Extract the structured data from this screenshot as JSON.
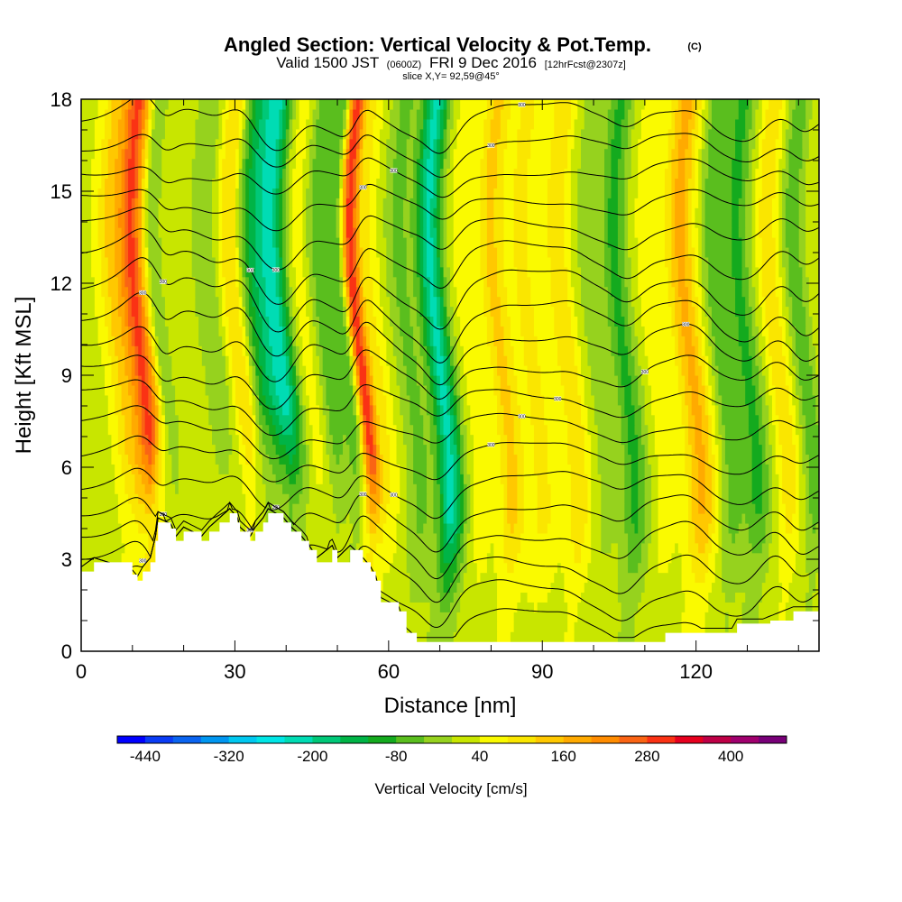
{
  "titles": {
    "main": "Angled Section: Vertical Velocity & Pot.Temp.",
    "main_mark": "(C)",
    "valid_prefix": "Valid 1500 JST",
    "valid_utc": "(0600Z)",
    "valid_date": "FRI 9 Dec 2016",
    "forecast": "[12hrFcst@2307z]",
    "slice": "slice X,Y= 92,59@45°"
  },
  "chart_data": {
    "type": "heatmap",
    "xlabel": "Distance [nm]",
    "ylabel": "Height [Kft MSL]",
    "xlim": [
      0,
      144
    ],
    "ylim": [
      0,
      18
    ],
    "x_ticks": [
      0,
      30,
      60,
      90,
      120
    ],
    "y_ticks": [
      0,
      3,
      6,
      9,
      12,
      15,
      18
    ],
    "colorbar": {
      "label": "Vertical Velocity [cm/s]",
      "tick_labels": [
        "-440",
        "-320",
        "-200",
        "-80",
        "40",
        "160",
        "280",
        "400"
      ],
      "min": -480,
      "max": 480,
      "step": 40,
      "colors": [
        "#0000ff",
        "#0a3cf5",
        "#0a64f0",
        "#0096f0",
        "#00c8f0",
        "#00e6e6",
        "#00dcb4",
        "#00c878",
        "#00b446",
        "#14aa1e",
        "#5abe1e",
        "#96d21e",
        "#c8e600",
        "#fafa00",
        "#fae600",
        "#ffc800",
        "#ffaa00",
        "#ff8c00",
        "#fa6414",
        "#fa3214",
        "#e6001e",
        "#be0046",
        "#a0006e",
        "#780078"
      ]
    },
    "velocity_bands": [
      {
        "x": 8,
        "w": 3,
        "v": 110
      },
      {
        "x": 12,
        "w": 2.4,
        "v": 250
      },
      {
        "x": 16,
        "w": 1.5,
        "v": -70
      },
      {
        "x": 21,
        "w": 2.5,
        "v": 20
      },
      {
        "x": 26,
        "w": 2.5,
        "v": -60
      },
      {
        "x": 31,
        "w": 2.2,
        "v": 110
      },
      {
        "x": 35,
        "w": 2.6,
        "v": -110
      },
      {
        "x": 39,
        "w": 3,
        "v": -230
      },
      {
        "x": 44,
        "w": 2.5,
        "v": 50
      },
      {
        "x": 48,
        "w": 2.2,
        "v": -80
      },
      {
        "x": 52,
        "w": 1.7,
        "v": -120
      },
      {
        "x": 54.5,
        "w": 1.8,
        "v": 290
      },
      {
        "x": 58,
        "w": 2,
        "v": 60
      },
      {
        "x": 64,
        "w": 2.5,
        "v": -70
      },
      {
        "x": 70,
        "w": 2.5,
        "v": -230
      },
      {
        "x": 76,
        "w": 2.2,
        "v": 40
      },
      {
        "x": 82,
        "w": 2.5,
        "v": 110
      },
      {
        "x": 88,
        "w": 3,
        "v": 70
      },
      {
        "x": 95,
        "w": 2.5,
        "v": 90
      },
      {
        "x": 100,
        "w": 2.5,
        "v": -30
      },
      {
        "x": 106,
        "w": 2.5,
        "v": -110
      },
      {
        "x": 112,
        "w": 2.2,
        "v": 40
      },
      {
        "x": 119,
        "w": 3,
        "v": 150
      },
      {
        "x": 125,
        "w": 2.5,
        "v": -80
      },
      {
        "x": 130,
        "w": 2.5,
        "v": -110
      },
      {
        "x": 136,
        "w": 2.2,
        "v": 90
      },
      {
        "x": 141,
        "w": 2,
        "v": -90
      }
    ],
    "terrain_kft": [
      [
        0,
        2.6
      ],
      [
        2.5,
        2.9
      ],
      [
        10,
        2.5
      ],
      [
        11,
        2.3
      ],
      [
        12,
        2.6
      ],
      [
        13.5,
        2.9
      ],
      [
        14.5,
        3.6
      ],
      [
        15,
        4.2
      ],
      [
        17.5,
        4.0
      ],
      [
        18.5,
        3.6
      ],
      [
        20,
        3.9
      ],
      [
        23.5,
        3.6
      ],
      [
        25,
        3.9
      ],
      [
        27,
        4.2
      ],
      [
        29,
        4.5
      ],
      [
        30.5,
        4.2
      ],
      [
        31,
        3.9
      ],
      [
        33,
        3.6
      ],
      [
        34,
        3.9
      ],
      [
        35.5,
        4.2
      ],
      [
        36.5,
        4.5
      ],
      [
        39.5,
        4.2
      ],
      [
        41,
        3.9
      ],
      [
        43,
        3.6
      ],
      [
        44.5,
        3.3
      ],
      [
        46,
        2.9
      ],
      [
        49,
        3.3
      ],
      [
        50,
        2.9
      ],
      [
        52.5,
        3.3
      ],
      [
        55,
        2.9
      ],
      [
        56.5,
        2.6
      ],
      [
        57.5,
        2.3
      ],
      [
        58.5,
        1.6
      ],
      [
        62,
        1.3
      ],
      [
        63.5,
        0.6
      ],
      [
        65.5,
        0.3
      ],
      [
        68,
        0.3
      ],
      [
        88,
        0.3
      ],
      [
        91,
        0.3
      ],
      [
        106,
        0.3
      ],
      [
        113,
        0.3
      ],
      [
        114,
        0.6
      ],
      [
        127,
        0.6
      ],
      [
        128,
        0.9
      ],
      [
        133,
        0.9
      ],
      [
        134.5,
        1.0
      ],
      [
        139,
        1.3
      ],
      [
        144,
        1.3
      ]
    ],
    "contour_label_value": "300"
  }
}
